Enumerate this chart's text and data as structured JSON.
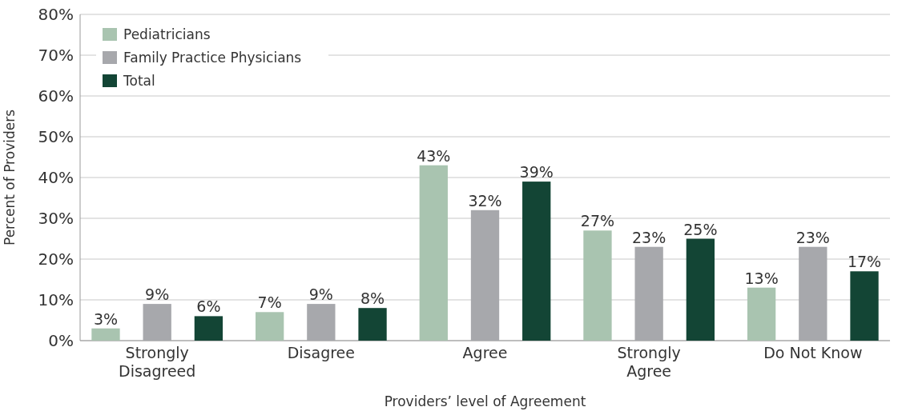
{
  "chart_data": {
    "type": "bar",
    "xlabel": "Providers’ level of Agreement",
    "ylabel": "Percent of Providers",
    "categories": [
      "Strongly Disagreed",
      "Disagree",
      "Agree",
      "Strongly Agree",
      "Do Not Know"
    ],
    "series": [
      {
        "name": "Pediatricians",
        "color": "#a9c4b0",
        "values": [
          3,
          7,
          43,
          27,
          13
        ],
        "value_labels": [
          "3%",
          "7%",
          "43%",
          "27%",
          "13%"
        ]
      },
      {
        "name": "Family Practice Physicians",
        "color": "#a7a8ac",
        "values": [
          9,
          9,
          32,
          23,
          23
        ],
        "value_labels": [
          "9%",
          "9%",
          "32%",
          "23%",
          "23%"
        ]
      },
      {
        "name": "Total",
        "color": "#134535",
        "values": [
          6,
          8,
          39,
          25,
          17
        ],
        "value_labels": [
          "6%",
          "8%",
          "39%",
          "25%",
          "17%"
        ]
      }
    ],
    "ylim": [
      0,
      80
    ],
    "yticks": [
      {
        "value": 0,
        "label": "0%"
      },
      {
        "value": 10,
        "label": "10%"
      },
      {
        "value": 20,
        "label": "20%"
      },
      {
        "value": 30,
        "label": "30%"
      },
      {
        "value": 40,
        "label": "40%"
      },
      {
        "value": 50,
        "label": "50%"
      },
      {
        "value": 60,
        "label": "60%"
      },
      {
        "value": 70,
        "label": "70%"
      },
      {
        "value": 80,
        "label": "80%"
      }
    ],
    "grid": "y",
    "legend": "top left"
  }
}
